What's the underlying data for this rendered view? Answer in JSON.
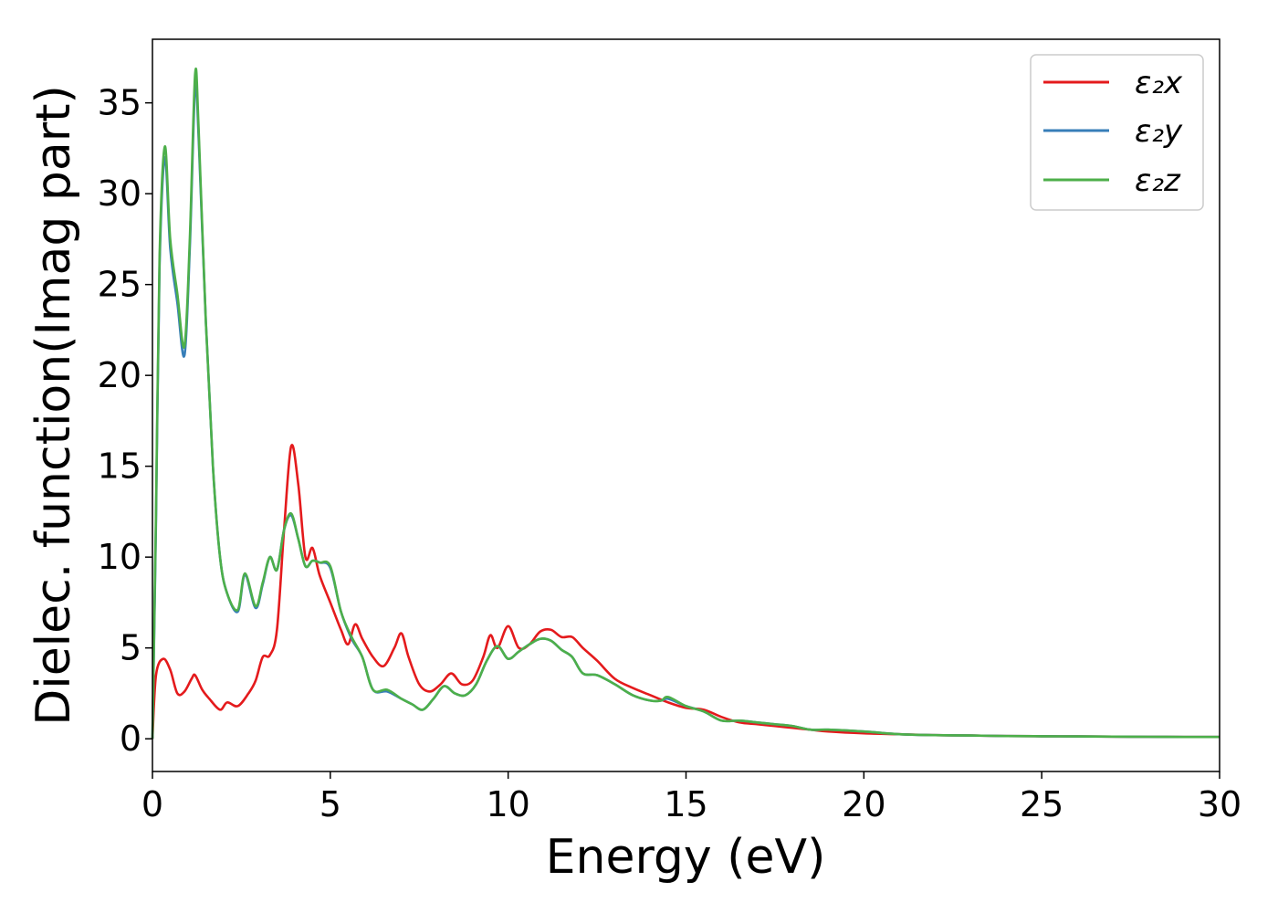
{
  "chart_data": {
    "type": "line",
    "title": "",
    "xlabel": "Energy (eV)",
    "ylabel": "Dielec. function(Imag part)",
    "xlim": [
      0,
      30
    ],
    "ylim": [
      -1.8,
      38.5
    ],
    "xticks": [
      0,
      5,
      10,
      15,
      20,
      25,
      30
    ],
    "yticks": [
      0,
      5,
      10,
      15,
      20,
      25,
      30,
      35
    ],
    "xtick_labels": [
      "0",
      "5",
      "10",
      "15",
      "20",
      "25",
      "30"
    ],
    "ytick_labels": [
      "0",
      "5",
      "10",
      "15",
      "20",
      "25",
      "30",
      "35"
    ],
    "grid": false,
    "legend_position": "top-right",
    "series": [
      {
        "name": "ε₂x",
        "color": "#e41a1c",
        "x": [
          0,
          0.1,
          0.3,
          0.5,
          0.7,
          0.9,
          1.1,
          1.2,
          1.4,
          1.6,
          1.9,
          2.1,
          2.4,
          2.7,
          2.9,
          3.1,
          3.3,
          3.5,
          3.7,
          3.9,
          4.1,
          4.3,
          4.5,
          4.7,
          5.0,
          5.3,
          5.5,
          5.7,
          5.9,
          6.2,
          6.5,
          6.8,
          7.0,
          7.2,
          7.5,
          7.8,
          8.1,
          8.4,
          8.7,
          9.0,
          9.3,
          9.5,
          9.7,
          10.0,
          10.3,
          10.6,
          10.9,
          11.2,
          11.5,
          11.8,
          12.1,
          12.5,
          13.0,
          13.5,
          14.0,
          14.5,
          15.0,
          15.5,
          16.0,
          16.5,
          17.0,
          17.5,
          18.0,
          18.5,
          19.0,
          20.0,
          21.0,
          22.0,
          23.0,
          24.0,
          25.0,
          26.0,
          27.0,
          28.0,
          29.0,
          30.0
        ],
        "values": [
          0,
          3.5,
          4.4,
          3.8,
          2.5,
          2.6,
          3.3,
          3.5,
          2.7,
          2.2,
          1.6,
          2.0,
          1.8,
          2.5,
          3.2,
          4.5,
          4.6,
          6.0,
          11.5,
          16.1,
          14.0,
          10.0,
          10.5,
          9.0,
          7.5,
          6.0,
          5.2,
          6.3,
          5.5,
          4.5,
          4.0,
          5.0,
          5.8,
          4.5,
          3.0,
          2.6,
          3.0,
          3.6,
          3.0,
          3.2,
          4.5,
          5.7,
          5.0,
          6.2,
          5.0,
          5.2,
          5.9,
          6.0,
          5.6,
          5.6,
          5.0,
          4.3,
          3.3,
          2.8,
          2.4,
          2.0,
          1.7,
          1.6,
          1.2,
          0.9,
          0.8,
          0.7,
          0.6,
          0.5,
          0.4,
          0.3,
          0.25,
          0.2,
          0.18,
          0.15,
          0.14,
          0.13,
          0.12,
          0.11,
          0.1,
          0.1
        ]
      },
      {
        "name": "ε₂y",
        "color": "#377eb8",
        "x": [
          0,
          0.1,
          0.2,
          0.35,
          0.5,
          0.7,
          0.9,
          1.05,
          1.2,
          1.3,
          1.5,
          1.7,
          1.9,
          2.1,
          2.4,
          2.6,
          2.9,
          3.1,
          3.3,
          3.5,
          3.7,
          3.9,
          4.1,
          4.3,
          4.5,
          4.7,
          5.0,
          5.3,
          5.6,
          5.9,
          6.2,
          6.6,
          7.0,
          7.3,
          7.6,
          7.9,
          8.2,
          8.5,
          8.8,
          9.1,
          9.4,
          9.7,
          10.0,
          10.3,
          10.6,
          10.9,
          11.2,
          11.5,
          11.8,
          12.1,
          12.5,
          13.0,
          13.5,
          14.0,
          14.3,
          14.5,
          15.0,
          15.5,
          16.0,
          16.5,
          17.0,
          17.5,
          18.0,
          18.5,
          19.0,
          20.0,
          21.0,
          22.0,
          23.0,
          24.0,
          25.0,
          26.0,
          27.0,
          28.0,
          29.0,
          30.0
        ],
        "values": [
          0,
          12.0,
          26.0,
          32.0,
          27.0,
          24.0,
          21.1,
          27.0,
          35.9,
          33.0,
          23.0,
          15.0,
          10.0,
          8.0,
          7.0,
          9.0,
          7.2,
          8.5,
          10.0,
          9.3,
          11.5,
          12.3,
          11.0,
          9.5,
          9.8,
          9.7,
          9.4,
          7.0,
          5.5,
          4.5,
          2.7,
          2.6,
          2.2,
          1.9,
          1.6,
          2.2,
          2.9,
          2.5,
          2.4,
          3.0,
          4.3,
          5.1,
          4.4,
          4.8,
          5.2,
          5.5,
          5.4,
          4.9,
          4.5,
          3.6,
          3.5,
          3.0,
          2.4,
          2.1,
          2.1,
          2.2,
          1.8,
          1.5,
          1.0,
          1.0,
          0.9,
          0.8,
          0.7,
          0.5,
          0.5,
          0.4,
          0.25,
          0.2,
          0.18,
          0.15,
          0.14,
          0.13,
          0.12,
          0.11,
          0.1,
          0.1
        ]
      },
      {
        "name": "ε₂z",
        "color": "#4daf4a",
        "x": [
          0,
          0.1,
          0.2,
          0.35,
          0.5,
          0.7,
          0.9,
          1.05,
          1.2,
          1.3,
          1.5,
          1.7,
          1.9,
          2.1,
          2.4,
          2.6,
          2.9,
          3.1,
          3.3,
          3.5,
          3.7,
          3.9,
          4.1,
          4.3,
          4.5,
          4.7,
          5.0,
          5.3,
          5.6,
          5.9,
          6.2,
          6.6,
          7.0,
          7.3,
          7.6,
          7.9,
          8.2,
          8.5,
          8.8,
          9.1,
          9.4,
          9.7,
          10.0,
          10.3,
          10.6,
          10.9,
          11.2,
          11.5,
          11.8,
          12.1,
          12.5,
          13.0,
          13.5,
          14.0,
          14.3,
          14.5,
          15.0,
          15.5,
          16.0,
          16.5,
          17.0,
          17.5,
          18.0,
          18.5,
          19.0,
          20.0,
          21.0,
          22.0,
          23.0,
          24.0,
          25.0,
          26.0,
          27.0,
          28.0,
          29.0,
          30.0
        ],
        "values": [
          0,
          12.5,
          26.5,
          32.6,
          27.5,
          24.5,
          21.6,
          27.5,
          36.6,
          33.5,
          23.0,
          15.0,
          10.0,
          8.0,
          7.1,
          9.1,
          7.3,
          8.6,
          10.0,
          9.3,
          11.5,
          12.4,
          11.0,
          9.5,
          9.8,
          9.7,
          9.5,
          7.0,
          5.6,
          4.5,
          2.7,
          2.7,
          2.2,
          1.9,
          1.6,
          2.2,
          2.9,
          2.5,
          2.4,
          3.0,
          4.3,
          5.1,
          4.4,
          4.8,
          5.2,
          5.5,
          5.4,
          4.9,
          4.5,
          3.6,
          3.5,
          3.0,
          2.4,
          2.1,
          2.1,
          2.3,
          1.8,
          1.5,
          1.0,
          1.0,
          0.9,
          0.8,
          0.7,
          0.5,
          0.5,
          0.4,
          0.25,
          0.2,
          0.18,
          0.15,
          0.14,
          0.13,
          0.12,
          0.11,
          0.1,
          0.1
        ]
      }
    ]
  }
}
